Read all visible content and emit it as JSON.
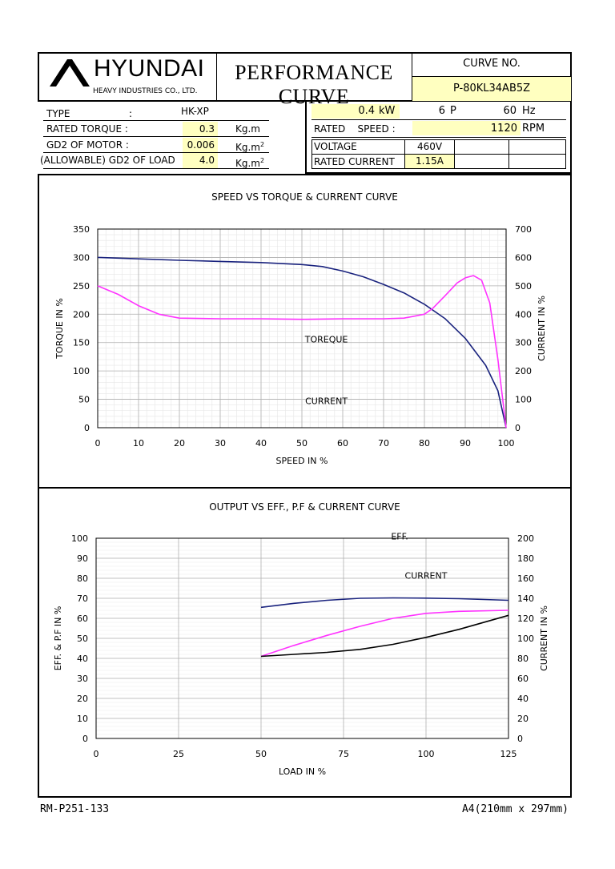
{
  "header": {
    "brand": "HYUNDAI",
    "company": "HEAVY INDUSTRIES CO., LTD.",
    "title": "PERFORMANCE CURVE",
    "curve_no_label": "CURVE NO.",
    "curve_no": "P-80KL34AB5Z"
  },
  "specs": {
    "type_label": "TYPE",
    "type_sep": ":",
    "type_value": "HK-XP",
    "rated_torque_label": "RATED TORQUE :",
    "rated_torque_value": "0.3",
    "rated_torque_unit": "Kg.m",
    "gd2_motor_label": "GD2 OF MOTOR :",
    "gd2_motor_value": "0.006",
    "gd2_motor_unit": "Kg.m",
    "gd2_load_label": "(ALLOWABLE) GD2 OF LOAD",
    "gd2_load_value": "4.0",
    "gd2_load_unit": "Kg.m",
    "unit_sup": "2",
    "power_value": "0.4",
    "power_unit": "kW",
    "poles_value": "6",
    "poles_unit": "P",
    "freq_value": "60",
    "freq_unit": "Hz",
    "rated_speed_label": "RATED    SPEED :",
    "rated_speed_value": "1120",
    "rated_speed_unit": "RPM",
    "voltage_label": "VOLTAGE",
    "voltage_value": "460V",
    "rated_current_label": "RATED CURRENT",
    "rated_current_value": "1.15A"
  },
  "footer": {
    "doc_code": "RM-P251-133",
    "paper_size": "A4(210mm x 297mm)"
  },
  "chart_data": [
    {
      "type": "line",
      "title": "SPEED VS TORQUE & CURRENT CURVE",
      "xlabel": "SPEED IN %",
      "ylabel": "TORQUE IN %",
      "y2label": "CURRENT IN %",
      "xlim": [
        0,
        100
      ],
      "ylim": [
        0,
        350
      ],
      "y2lim": [
        0,
        700
      ],
      "xticks": [
        0,
        10,
        20,
        30,
        40,
        50,
        60,
        70,
        80,
        90,
        100
      ],
      "yticks": [
        0,
        50,
        100,
        150,
        200,
        250,
        300,
        350
      ],
      "y2ticks": [
        0,
        100,
        200,
        300,
        400,
        500,
        600,
        700
      ],
      "grid": true,
      "series": [
        {
          "name": "CURRENT",
          "color": "#1a237e",
          "axis": "right",
          "x": [
            0,
            10,
            20,
            30,
            40,
            50,
            55,
            60,
            65,
            70,
            75,
            80,
            85,
            90,
            95,
            98,
            100
          ],
          "y": [
            600,
            595,
            590,
            586,
            582,
            575,
            568,
            552,
            532,
            505,
            475,
            435,
            385,
            315,
            220,
            130,
            0
          ]
        },
        {
          "name": "TOREQUE",
          "color": "#ff33ff",
          "axis": "left",
          "x": [
            0,
            5,
            10,
            15,
            20,
            30,
            40,
            50,
            60,
            70,
            75,
            80,
            82,
            85,
            88,
            90,
            92,
            94,
            96,
            98,
            100
          ],
          "y": [
            250,
            235,
            215,
            200,
            193,
            192,
            192,
            191,
            192,
            192,
            193,
            200,
            210,
            232,
            255,
            264,
            268,
            260,
            220,
            120,
            0
          ]
        }
      ]
    },
    {
      "type": "line",
      "title": "OUTPUT VS EFF., P.F & CURRENT CURVE",
      "xlabel": "LOAD IN %",
      "ylabel": "EFF. & P.F IN %",
      "y2label": "CURRENT IN %",
      "xlim": [
        0,
        125
      ],
      "ylim": [
        0,
        100
      ],
      "y2lim": [
        0,
        200
      ],
      "xticks": [
        0,
        25,
        50,
        75,
        100,
        125
      ],
      "yticks": [
        0,
        10,
        20,
        30,
        40,
        50,
        60,
        70,
        80,
        90,
        100
      ],
      "y2ticks": [
        0,
        20,
        40,
        60,
        80,
        100,
        120,
        140,
        160,
        180,
        200
      ],
      "grid": true,
      "series": [
        {
          "name": "EFF.",
          "color": "#1a237e",
          "axis": "left",
          "x": [
            50,
            60,
            70,
            80,
            90,
            100,
            110,
            125
          ],
          "y": [
            65.5,
            67.5,
            69,
            70,
            70.2,
            70.1,
            69.8,
            69
          ]
        },
        {
          "name": "P.F",
          "color": "#ff33ff",
          "axis": "left",
          "x": [
            50,
            60,
            70,
            80,
            90,
            100,
            110,
            125
          ],
          "y": [
            41,
            46.5,
            51.5,
            56,
            60,
            62.5,
            63.5,
            64
          ]
        },
        {
          "name": "CURRENT",
          "color": "#000000",
          "axis": "right",
          "x": [
            50,
            60,
            70,
            80,
            90,
            100,
            110,
            125
          ],
          "y": [
            82,
            84,
            86,
            89,
            94,
            101,
            109,
            123
          ]
        }
      ]
    }
  ]
}
